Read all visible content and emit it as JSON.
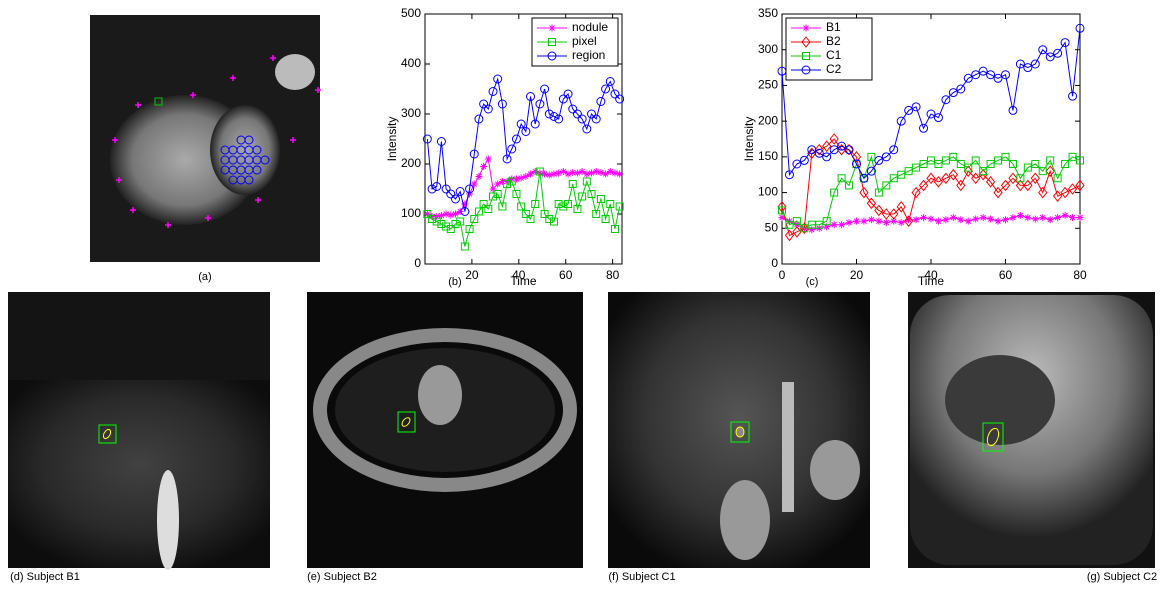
{
  "figure": {
    "captions": [
      "(a)",
      "(d) Subject B1",
      "(e) Subject B2",
      "(f) Subject C1",
      "(g) Subject C2"
    ]
  },
  "chart_data": [
    {
      "type": "line",
      "caption": "(b)",
      "x_label": "Time",
      "y_label": "Intensity",
      "x": [
        1,
        3,
        5,
        7,
        9,
        11,
        13,
        15,
        17,
        19,
        21,
        23,
        25,
        27,
        29,
        31,
        33,
        35,
        37,
        39,
        41,
        43,
        45,
        47,
        49,
        51,
        53,
        55,
        57,
        59,
        61,
        63,
        65,
        67,
        69,
        71,
        73,
        75,
        77,
        79,
        81,
        83
      ],
      "xlim": [
        0,
        84
      ],
      "xticks": [
        20,
        40,
        60,
        80
      ],
      "ylim": [
        0,
        500
      ],
      "yticks": [
        0,
        100,
        200,
        300,
        400,
        500
      ],
      "legend_loc": "upper right",
      "series": [
        {
          "name": "nodule",
          "color": "#ff00ff",
          "marker": "star",
          "values": [
            100,
            95,
            95,
            97,
            100,
            98,
            100,
            105,
            120,
            140,
            160,
            175,
            195,
            210,
            150,
            160,
            165,
            165,
            170,
            170,
            172,
            175,
            180,
            185,
            182,
            180,
            178,
            180,
            182,
            185,
            180,
            183,
            182,
            185,
            180,
            182,
            185,
            183,
            180,
            185,
            182,
            180
          ]
        },
        {
          "name": "pixel",
          "color": "#00cc00",
          "marker": "square",
          "values": [
            100,
            90,
            85,
            80,
            75,
            70,
            80,
            85,
            35,
            70,
            90,
            105,
            120,
            110,
            135,
            140,
            115,
            160,
            165,
            140,
            115,
            100,
            90,
            120,
            185,
            100,
            90,
            85,
            120,
            115,
            120,
            160,
            110,
            135,
            165,
            140,
            100,
            130,
            90,
            120,
            70,
            115
          ]
        },
        {
          "name": "region",
          "color": "#0000ff",
          "marker": "circle",
          "values": [
            250,
            150,
            155,
            245,
            150,
            140,
            130,
            145,
            105,
            150,
            220,
            290,
            320,
            310,
            345,
            370,
            320,
            210,
            230,
            250,
            280,
            265,
            335,
            280,
            320,
            350,
            300,
            295,
            290,
            330,
            340,
            310,
            300,
            290,
            270,
            300,
            290,
            325,
            350,
            365,
            340,
            330
          ]
        }
      ]
    },
    {
      "type": "line",
      "caption": "(c)",
      "x_label": "Time",
      "y_label": "Intensity",
      "x": [
        0,
        2,
        4,
        6,
        8,
        10,
        12,
        14,
        16,
        18,
        20,
        22,
        24,
        26,
        28,
        30,
        32,
        34,
        36,
        38,
        40,
        42,
        44,
        46,
        48,
        50,
        52,
        54,
        56,
        58,
        60,
        62,
        64,
        66,
        68,
        70,
        72,
        74,
        76,
        78,
        80
      ],
      "xlim": [
        0,
        80
      ],
      "xticks": [
        0,
        20,
        40,
        60,
        80
      ],
      "ylim": [
        0,
        350
      ],
      "yticks": [
        0,
        50,
        100,
        150,
        200,
        250,
        300,
        350
      ],
      "legend_loc": "upper left",
      "series": [
        {
          "name": "B1",
          "color": "#ff00ff",
          "marker": "star",
          "values": [
            65,
            60,
            55,
            50,
            48,
            50,
            52,
            55,
            55,
            58,
            60,
            60,
            62,
            60,
            58,
            60,
            58,
            62,
            62,
            65,
            63,
            60,
            62,
            65,
            62,
            60,
            63,
            65,
            63,
            60,
            62,
            65,
            68,
            65,
            63,
            65,
            62,
            65,
            68,
            65,
            65
          ]
        },
        {
          "name": "B2",
          "color": "#ff0000",
          "marker": "diamond",
          "values": [
            80,
            40,
            45,
            50,
            155,
            160,
            165,
            175,
            160,
            160,
            150,
            100,
            85,
            75,
            70,
            70,
            80,
            60,
            100,
            110,
            120,
            115,
            120,
            125,
            110,
            130,
            120,
            125,
            115,
            100,
            110,
            120,
            110,
            110,
            120,
            100,
            130,
            95,
            100,
            105,
            110
          ]
        },
        {
          "name": "C1",
          "color": "#00cc00",
          "marker": "square",
          "values": [
            75,
            55,
            60,
            50,
            55,
            55,
            60,
            100,
            120,
            110,
            140,
            120,
            150,
            100,
            110,
            120,
            125,
            130,
            135,
            140,
            145,
            140,
            145,
            150,
            140,
            135,
            145,
            130,
            140,
            145,
            150,
            140,
            120,
            135,
            140,
            130,
            145,
            120,
            140,
            150,
            145
          ]
        },
        {
          "name": "C2",
          "color": "#0000ff",
          "marker": "circle",
          "values": [
            270,
            125,
            140,
            145,
            160,
            155,
            150,
            160,
            165,
            160,
            140,
            120,
            130,
            145,
            150,
            160,
            200,
            215,
            220,
            190,
            210,
            205,
            230,
            240,
            245,
            260,
            265,
            270,
            265,
            260,
            265,
            215,
            280,
            275,
            280,
            300,
            290,
            295,
            310,
            235,
            330
          ]
        }
      ]
    }
  ]
}
